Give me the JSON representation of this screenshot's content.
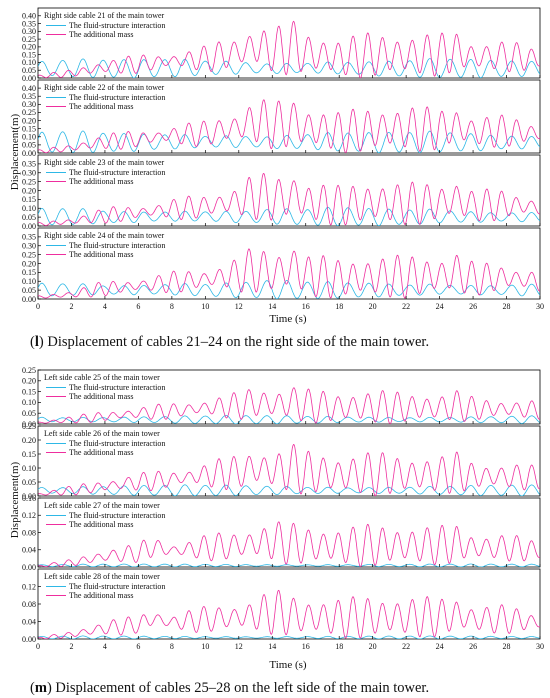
{
  "colors": {
    "fluid_structure": "#2EB8E6",
    "additional_mass": "#EE2E9E",
    "axis": "#000000"
  },
  "figures": [
    {
      "caption_label": "l",
      "caption_text": "Displacement of cables 21–24 on the right side of the main tower.",
      "xlabel": "Time (s)",
      "ylabel": "Displacement(m)"
    },
    {
      "caption_label": "m",
      "caption_text": "Displacement of cables 25–28 on the left side of the main tower.",
      "xlabel": "Time (s)",
      "ylabel": "Displacement(m)"
    }
  ],
  "chart_data": [
    {
      "type": "line",
      "title": "Right side cable 21 of the main tower",
      "xlabel": "Time (s)",
      "ylabel": "Displacement(m)",
      "xlim": [
        0,
        30
      ],
      "ylim": [
        0,
        0.45
      ],
      "x_ticks": [
        0,
        2,
        4,
        6,
        8,
        10,
        12,
        14,
        16,
        18,
        20,
        22,
        24,
        26,
        28,
        30
      ],
      "y_ticks": [
        0.0,
        0.05,
        0.1,
        0.15,
        0.2,
        0.25,
        0.3,
        0.35,
        0.4
      ],
      "y_tick_labels": [
        "0.00",
        "0.05",
        "0.10",
        "0.15",
        "0.20",
        "0.25",
        "0.30",
        "0.35",
        "0.40"
      ],
      "legend_position": "top-left",
      "series": [
        {
          "name": "The fluid-structure interaction",
          "color": "#2EB8E6",
          "x": [
            0,
            2,
            4,
            6,
            8,
            10,
            12,
            14,
            16,
            18,
            20,
            22,
            24,
            26,
            28,
            30
          ],
          "y": [
            0.12,
            0.13,
            0.12,
            0.12,
            0.13,
            0.13,
            0.13,
            0.12,
            0.13,
            0.13,
            0.12,
            0.12,
            0.13,
            0.12,
            0.12,
            0.12
          ]
        },
        {
          "name": "The additional mass",
          "color": "#EE2E9E",
          "x": [
            0,
            2,
            4,
            6,
            8,
            10,
            12,
            13,
            14,
            15.5,
            16,
            18,
            20,
            22,
            24,
            25,
            26,
            28,
            30
          ],
          "y": [
            0.02,
            0.06,
            0.14,
            0.18,
            0.22,
            0.25,
            0.33,
            0.41,
            0.35,
            0.4,
            0.32,
            0.26,
            0.3,
            0.29,
            0.3,
            0.34,
            0.27,
            0.28,
            0.24
          ]
        }
      ]
    },
    {
      "type": "line",
      "title": "Right side cable 22 of the main tower",
      "xlabel": "Time (s)",
      "ylabel": "Displacement(m)",
      "xlim": [
        0,
        30
      ],
      "ylim": [
        0,
        0.45
      ],
      "x_ticks": [
        0,
        2,
        4,
        6,
        8,
        10,
        12,
        14,
        16,
        18,
        20,
        22,
        24,
        26,
        28,
        30
      ],
      "y_ticks": [
        0.0,
        0.05,
        0.1,
        0.15,
        0.2,
        0.25,
        0.3,
        0.35,
        0.4
      ],
      "y_tick_labels": [
        "0.00",
        "0.05",
        "0.10",
        "0.15",
        "0.20",
        "0.25",
        "0.30",
        "0.35",
        "0.40"
      ],
      "legend_position": "top-left",
      "series": [
        {
          "name": "The fluid-structure interaction",
          "color": "#2EB8E6",
          "x": [
            0,
            2,
            4,
            6,
            8,
            10,
            12,
            14,
            16,
            18,
            20,
            22,
            24,
            26,
            28,
            30
          ],
          "y": [
            0.13,
            0.14,
            0.13,
            0.13,
            0.14,
            0.14,
            0.14,
            0.13,
            0.14,
            0.14,
            0.13,
            0.13,
            0.14,
            0.13,
            0.13,
            0.13
          ]
        },
        {
          "name": "The additional mass",
          "color": "#EE2E9E",
          "x": [
            0,
            2,
            4,
            6,
            8,
            10,
            12,
            13,
            14,
            15.5,
            16,
            18,
            20,
            22,
            24,
            25,
            26,
            28,
            30
          ],
          "y": [
            0.02,
            0.06,
            0.14,
            0.17,
            0.22,
            0.24,
            0.32,
            0.4,
            0.34,
            0.37,
            0.31,
            0.26,
            0.29,
            0.3,
            0.29,
            0.33,
            0.26,
            0.27,
            0.24
          ]
        }
      ]
    },
    {
      "type": "line",
      "title": "Right side cable 23 of the main tower",
      "xlabel": "Time (s)",
      "ylabel": "Displacement(m)",
      "xlim": [
        0,
        30
      ],
      "ylim": [
        0,
        0.4
      ],
      "x_ticks": [
        0,
        2,
        4,
        6,
        8,
        10,
        12,
        14,
        16,
        18,
        20,
        22,
        24,
        26,
        28,
        30
      ],
      "y_ticks": [
        0.0,
        0.05,
        0.1,
        0.15,
        0.2,
        0.25,
        0.3,
        0.35
      ],
      "y_tick_labels": [
        "0.00",
        "0.05",
        "0.10",
        "0.15",
        "0.20",
        "0.25",
        "0.30",
        "0.35"
      ],
      "legend_position": "top-left",
      "series": [
        {
          "name": "The fluid-structure interaction",
          "color": "#2EB8E6",
          "x": [
            0,
            2,
            4,
            6,
            8,
            10,
            12,
            14,
            16,
            18,
            20,
            22,
            24,
            26,
            28,
            30
          ],
          "y": [
            0.1,
            0.11,
            0.1,
            0.1,
            0.11,
            0.11,
            0.1,
            0.11,
            0.1,
            0.11,
            0.1,
            0.1,
            0.11,
            0.1,
            0.1,
            0.1
          ]
        },
        {
          "name": "The additional mass",
          "color": "#EE2E9E",
          "x": [
            0,
            2,
            4,
            6,
            8,
            10,
            12,
            13,
            14,
            15.5,
            16,
            18,
            20,
            22,
            24,
            25,
            26,
            28,
            30
          ],
          "y": [
            0.02,
            0.05,
            0.12,
            0.15,
            0.19,
            0.22,
            0.28,
            0.35,
            0.3,
            0.34,
            0.27,
            0.23,
            0.26,
            0.25,
            0.26,
            0.3,
            0.23,
            0.24,
            0.21
          ]
        }
      ]
    },
    {
      "type": "line",
      "title": "Right side cable 24 of the main tower",
      "xlabel": "Time (s)",
      "ylabel": "Displacement(m)",
      "xlim": [
        0,
        30
      ],
      "ylim": [
        0,
        0.4
      ],
      "x_ticks": [
        0,
        2,
        4,
        6,
        8,
        10,
        12,
        14,
        16,
        18,
        20,
        22,
        24,
        26,
        28,
        30
      ],
      "y_ticks": [
        0.0,
        0.05,
        0.1,
        0.15,
        0.2,
        0.25,
        0.3,
        0.35
      ],
      "y_tick_labels": [
        "0.00",
        "0.05",
        "0.10",
        "0.15",
        "0.20",
        "0.25",
        "0.30",
        "0.35"
      ],
      "legend_position": "top-left",
      "series": [
        {
          "name": "The fluid-structure interaction",
          "color": "#2EB8E6",
          "x": [
            0,
            2,
            4,
            6,
            8,
            10,
            12,
            14,
            16,
            18,
            20,
            22,
            24,
            26,
            28,
            30
          ],
          "y": [
            0.1,
            0.11,
            0.1,
            0.1,
            0.11,
            0.1,
            0.1,
            0.11,
            0.1,
            0.1,
            0.1,
            0.1,
            0.11,
            0.1,
            0.1,
            0.1
          ]
        },
        {
          "name": "The additional mass",
          "color": "#EE2E9E",
          "x": [
            0,
            2,
            4,
            6,
            8,
            10,
            12,
            13,
            14,
            15.5,
            16,
            18,
            20,
            22,
            24,
            25,
            26,
            28,
            30
          ],
          "y": [
            0.02,
            0.05,
            0.12,
            0.15,
            0.19,
            0.22,
            0.28,
            0.34,
            0.29,
            0.36,
            0.27,
            0.23,
            0.25,
            0.25,
            0.26,
            0.3,
            0.23,
            0.24,
            0.2
          ]
        }
      ]
    },
    {
      "type": "line",
      "title": "Left side cable 25 of the main tower",
      "xlabel": "Time (s)",
      "ylabel": "Displacement(m)",
      "xlim": [
        0,
        30
      ],
      "ylim": [
        0,
        0.25
      ],
      "x_ticks": [
        0,
        2,
        4,
        6,
        8,
        10,
        12,
        14,
        16,
        18,
        20,
        22,
        24,
        26,
        28,
        30
      ],
      "y_ticks": [
        0.0,
        0.05,
        0.1,
        0.15,
        0.2,
        0.25
      ],
      "y_tick_labels": [
        "0.00",
        "0.05",
        "0.10",
        "0.15",
        "0.20",
        "0.25"
      ],
      "legend_position": "top-left",
      "series": [
        {
          "name": "The fluid-structure interaction",
          "color": "#2EB8E6",
          "x": [
            0,
            2,
            4,
            6,
            8,
            10,
            12,
            14,
            16,
            18,
            20,
            22,
            24,
            26,
            28,
            30
          ],
          "y": [
            0.04,
            0.04,
            0.04,
            0.04,
            0.04,
            0.04,
            0.04,
            0.04,
            0.04,
            0.04,
            0.04,
            0.04,
            0.04,
            0.04,
            0.04,
            0.04
          ]
        },
        {
          "name": "The additional mass",
          "color": "#EE2E9E",
          "x": [
            0,
            2,
            4,
            6,
            8,
            10,
            12,
            13,
            14,
            15.5,
            16,
            18,
            20,
            22,
            24,
            25,
            26,
            28,
            30
          ],
          "y": [
            0.01,
            0.04,
            0.07,
            0.1,
            0.12,
            0.15,
            0.17,
            0.2,
            0.18,
            0.2,
            0.17,
            0.15,
            0.16,
            0.15,
            0.15,
            0.17,
            0.14,
            0.14,
            0.13
          ]
        }
      ]
    },
    {
      "type": "line",
      "title": "Left side cable 26 of the main tower",
      "xlabel": "Time (s)",
      "ylabel": "Displacement(m)",
      "xlim": [
        0,
        30
      ],
      "ylim": [
        0,
        0.25
      ],
      "x_ticks": [
        0,
        2,
        4,
        6,
        8,
        10,
        12,
        14,
        16,
        18,
        20,
        22,
        24,
        26,
        28,
        30
      ],
      "y_ticks": [
        0.0,
        0.05,
        0.1,
        0.15,
        0.2,
        0.25
      ],
      "y_tick_labels": [
        "0.00",
        "0.05",
        "0.10",
        "0.15",
        "0.20",
        "0.25"
      ],
      "legend_position": "top-left",
      "series": [
        {
          "name": "The fluid-structure interaction",
          "color": "#2EB8E6",
          "x": [
            0,
            2,
            4,
            6,
            8,
            10,
            12,
            14,
            16,
            18,
            20,
            22,
            24,
            26,
            28,
            30
          ],
          "y": [
            0.04,
            0.04,
            0.04,
            0.04,
            0.04,
            0.04,
            0.04,
            0.04,
            0.04,
            0.04,
            0.04,
            0.04,
            0.04,
            0.04,
            0.04,
            0.04
          ]
        },
        {
          "name": "The additional mass",
          "color": "#EE2E9E",
          "x": [
            0,
            2,
            4,
            6,
            8,
            10,
            12,
            13,
            14,
            15.5,
            16,
            18,
            20,
            22,
            24,
            25,
            26,
            28,
            30
          ],
          "y": [
            0.01,
            0.04,
            0.07,
            0.1,
            0.12,
            0.15,
            0.17,
            0.2,
            0.18,
            0.2,
            0.17,
            0.15,
            0.16,
            0.15,
            0.15,
            0.17,
            0.14,
            0.14,
            0.13
          ]
        }
      ]
    },
    {
      "type": "line",
      "title": "Left side cable 27 of the main tower",
      "xlabel": "Time (s)",
      "ylabel": "Displacement(m)",
      "xlim": [
        0,
        30
      ],
      "ylim": [
        0,
        0.16
      ],
      "x_ticks": [
        0,
        2,
        4,
        6,
        8,
        10,
        12,
        14,
        16,
        18,
        20,
        22,
        24,
        26,
        28,
        30
      ],
      "y_ticks": [
        0.0,
        0.04,
        0.08,
        0.12,
        0.16
      ],
      "y_tick_labels": [
        "0.00",
        "0.04",
        "0.08",
        "0.12",
        "0.16"
      ],
      "legend_position": "top-left",
      "series": [
        {
          "name": "The fluid-structure interaction",
          "color": "#2EB8E6",
          "x": [
            0,
            2,
            4,
            6,
            8,
            10,
            12,
            14,
            16,
            18,
            20,
            22,
            24,
            26,
            28,
            30
          ],
          "y": [
            0.006,
            0.007,
            0.007,
            0.007,
            0.007,
            0.007,
            0.007,
            0.007,
            0.007,
            0.007,
            0.007,
            0.007,
            0.007,
            0.007,
            0.007,
            0.007
          ]
        },
        {
          "name": "The additional mass",
          "color": "#EE2E9E",
          "x": [
            0,
            2,
            4,
            6,
            6.8,
            8,
            10,
            12,
            13,
            14,
            15,
            16,
            18,
            20,
            22,
            24,
            25,
            26,
            28,
            30
          ],
          "y": [
            0.003,
            0.02,
            0.05,
            0.065,
            0.095,
            0.075,
            0.09,
            0.1,
            0.11,
            0.12,
            0.11,
            0.1,
            0.095,
            0.1,
            0.1,
            0.1,
            0.11,
            0.09,
            0.09,
            0.075
          ]
        }
      ]
    },
    {
      "type": "line",
      "title": "Left side cable 28 of the main tower",
      "xlabel": "Time (s)",
      "ylabel": "Displacement(m)",
      "xlim": [
        0,
        30
      ],
      "ylim": [
        0,
        0.16
      ],
      "x_ticks": [
        0,
        2,
        4,
        6,
        8,
        10,
        12,
        14,
        16,
        18,
        20,
        22,
        24,
        26,
        28,
        30
      ],
      "y_ticks": [
        0.0,
        0.04,
        0.08,
        0.12
      ],
      "y_tick_labels": [
        "0.00",
        "0.04",
        "0.08",
        "0.12"
      ],
      "legend_position": "top-left",
      "series": [
        {
          "name": "The fluid-structure interaction",
          "color": "#2EB8E6",
          "x": [
            0,
            2,
            4,
            6,
            8,
            10,
            12,
            14,
            16,
            18,
            20,
            22,
            24,
            26,
            28,
            30
          ],
          "y": [
            0.006,
            0.007,
            0.007,
            0.007,
            0.007,
            0.007,
            0.007,
            0.007,
            0.007,
            0.007,
            0.007,
            0.007,
            0.007,
            0.007,
            0.007,
            0.007
          ]
        },
        {
          "name": "The additional mass",
          "color": "#EE2E9E",
          "x": [
            0,
            2,
            4,
            6,
            6.8,
            8,
            10,
            12,
            13,
            14,
            15,
            16,
            18,
            20,
            22,
            24,
            25,
            26,
            28,
            30
          ],
          "y": [
            0.003,
            0.02,
            0.05,
            0.065,
            0.095,
            0.075,
            0.09,
            0.1,
            0.11,
            0.125,
            0.11,
            0.1,
            0.095,
            0.1,
            0.1,
            0.1,
            0.11,
            0.09,
            0.09,
            0.075
          ]
        }
      ]
    }
  ]
}
